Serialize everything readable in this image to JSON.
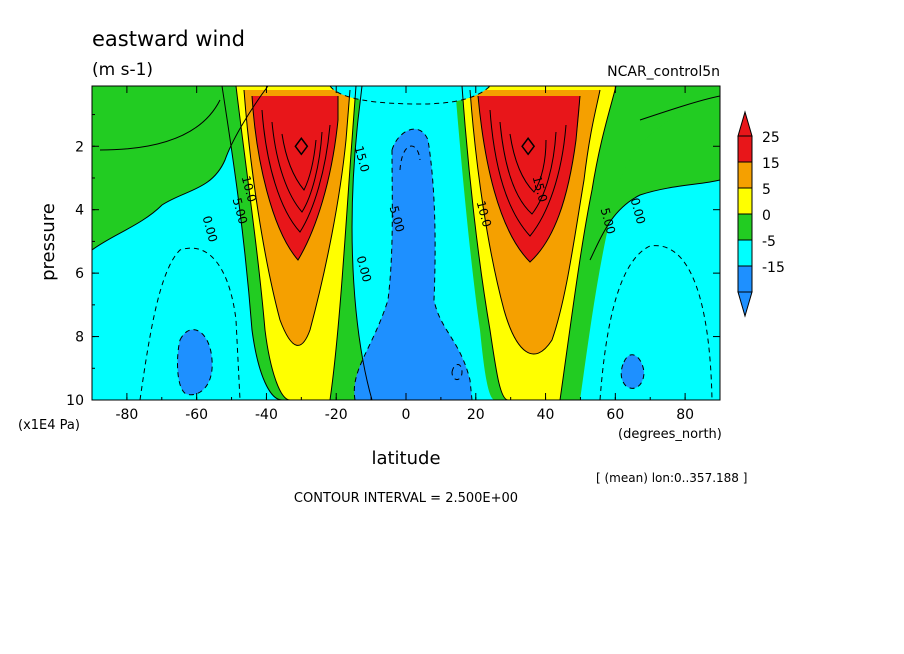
{
  "chart_data": {
    "type": "heatmap",
    "title": "eastward wind",
    "units": "(m s-1)",
    "dataset": "NCAR_control5n",
    "xlabel": "latitude",
    "x_units": "(degrees_north)",
    "ylabel": "pressure",
    "y_units": "(x1E4 Pa)",
    "x_ticks": [
      "-80",
      "-60",
      "-40",
      "-20",
      "0",
      "20",
      "40",
      "60",
      "80"
    ],
    "y_ticks": [
      "2",
      "4",
      "6",
      "8",
      "10"
    ],
    "xlim": [
      -90,
      90
    ],
    "ylim": [
      0.1,
      10
    ],
    "y_inverted": true,
    "footer_mean": "[ (mean) lon:0..357.188 ]",
    "contour_interval": "CONTOUR INTERVAL = 2.500E+00",
    "colorbar": {
      "labels": [
        "25",
        "15",
        "5",
        "0",
        "-5",
        "-15"
      ],
      "colors": [
        "#e8161a",
        "#f5a000",
        "#ffff00",
        "#22cc22",
        "#00ffff",
        "#1e90ff"
      ]
    },
    "features": [
      {
        "name": "southern jet core",
        "lat": -30,
        "pressure": 2,
        "value": 30
      },
      {
        "name": "northern jet core",
        "lat": 35,
        "pressure": 2,
        "value": 30
      },
      {
        "name": "equatorial easterlies",
        "lat": 3,
        "pressure": 5,
        "value": -10
      }
    ],
    "contour_labels": [
      "0.00",
      "5.00",
      "10.0",
      "15.0",
      "0.00",
      "5.00",
      "10.0",
      "15.0",
      "5.00",
      "0.00"
    ]
  }
}
